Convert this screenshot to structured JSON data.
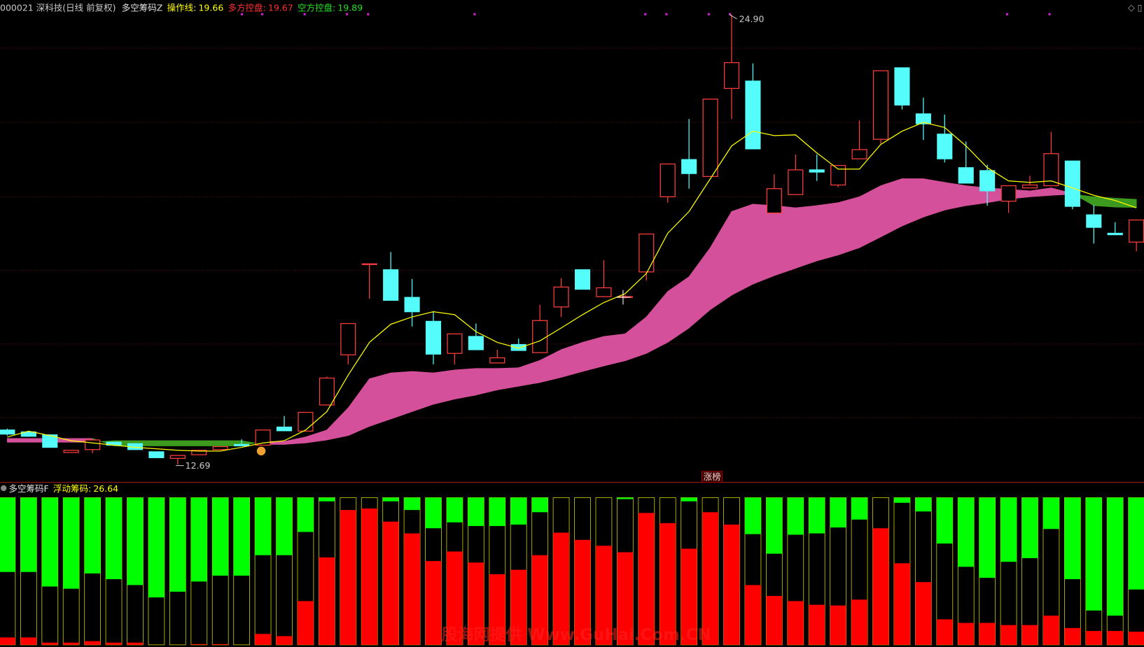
{
  "chart_data": [
    {
      "type": "candlestick",
      "title": "000021 深科技(日线 前复权)",
      "indicator": "多空筹码Z",
      "ylim": [
        12.25,
        25.3
      ],
      "up_color": "#ff3c3c",
      "down_color": "#54fcfc",
      "max_label": "24.90",
      "min_label": "12.69",
      "badge": "涨榜",
      "open": [
        13.63,
        13.58,
        13.5,
        13.02,
        13.1,
        13.3,
        13.26,
        13.04,
        12.86,
        12.96,
        13.1,
        13.24,
        13.22,
        13.71,
        13.6,
        14.31,
        15.67,
        18.14,
        17.98,
        17.23,
        16.58,
        15.71,
        16.17,
        15.45,
        15.95,
        15.73,
        16.97,
        17.98,
        17.25,
        17.23,
        17.92,
        19.96,
        20.97,
        20.51,
        22.9,
        23.1,
        19.52,
        20.02,
        20.69,
        20.28,
        20.99,
        21.52,
        23.46,
        22.21,
        21.66,
        20.75,
        20.67,
        19.84,
        20.2,
        20.26,
        20.93,
        19.47,
        18.97,
        18.73
      ],
      "high": [
        13.67,
        13.58,
        13.5,
        13.08,
        13.38,
        13.3,
        13.26,
        13.04,
        12.94,
        13.08,
        13.18,
        13.38,
        13.63,
        14.01,
        14.11,
        15.08,
        16.52,
        18.14,
        18.46,
        17.73,
        16.86,
        16.24,
        16.52,
        15.81,
        16.11,
        17.03,
        17.75,
        17.98,
        18.24,
        17.3,
        18.95,
        20.85,
        22.07,
        22.61,
        24.9,
        23.58,
        20.57,
        21.11,
        21.11,
        20.81,
        22.03,
        23.38,
        23.46,
        22.65,
        22.19,
        21.46,
        20.83,
        20.26,
        20.53,
        21.72,
        20.93,
        19.74,
        19.27,
        19.33
      ],
      "low": [
        13.48,
        13.46,
        13.16,
        13.02,
        13.0,
        13.22,
        13.1,
        12.88,
        12.69,
        12.96,
        13.1,
        13.2,
        13.22,
        13.61,
        13.6,
        14.31,
        15.41,
        17.19,
        17.15,
        16.44,
        15.41,
        15.41,
        15.81,
        15.45,
        15.79,
        15.73,
        16.7,
        17.45,
        17.25,
        17.2,
        17.69,
        19.8,
        20.18,
        20.51,
        22.07,
        21.26,
        19.52,
        20.02,
        20.39,
        20.22,
        20.99,
        21.4,
        22.33,
        21.5,
        20.89,
        20.33,
        19.72,
        19.52,
        20.2,
        20.26,
        19.62,
        18.69,
        18.93,
        18.48
      ],
      "close": [
        13.52,
        13.46,
        13.16,
        13.08,
        13.36,
        13.22,
        13.1,
        12.88,
        12.94,
        13.08,
        13.18,
        13.2,
        13.63,
        13.61,
        14.11,
        15.04,
        16.52,
        18.14,
        17.15,
        16.84,
        15.69,
        16.24,
        15.81,
        15.59,
        15.79,
        16.6,
        17.51,
        17.45,
        17.49,
        17.25,
        18.95,
        20.85,
        20.59,
        22.61,
        23.6,
        21.26,
        20.18,
        20.69,
        20.63,
        20.81,
        21.24,
        23.38,
        22.45,
        21.94,
        20.99,
        20.33,
        20.12,
        20.26,
        20.28,
        21.13,
        19.7,
        19.13,
        18.93,
        19.33
      ],
      "series": [
        {
          "name": "操作线:",
          "color": "#ffff00",
          "values": [
            13.44,
            13.6,
            13.48,
            13.34,
            13.28,
            13.22,
            13.16,
            13.12,
            13.08,
            13.06,
            13.06,
            13.16,
            13.28,
            13.34,
            13.63,
            14.13,
            15.12,
            16.01,
            16.5,
            16.7,
            16.84,
            16.76,
            16.3,
            16.01,
            15.85,
            16.05,
            16.4,
            16.76,
            17.09,
            17.33,
            17.88,
            18.97,
            19.56,
            20.45,
            21.34,
            21.74,
            21.62,
            21.64,
            21.15,
            20.71,
            20.71,
            21.38,
            21.74,
            21.98,
            21.84,
            21.34,
            20.75,
            20.39,
            20.35,
            20.39,
            20.2,
            20.0,
            19.86,
            19.66
          ]
        },
        {
          "name": "多方控盘:",
          "color": "#d4509a",
          "text_color": "#ff3030",
          "values": [
            13.4,
            13.4,
            13.4,
            13.4,
            13.4,
            13.2,
            13.2,
            13.2,
            13.2,
            13.2,
            13.2,
            13.2,
            13.32,
            13.32,
            13.44,
            13.63,
            14.23,
            15.02,
            15.18,
            15.22,
            15.18,
            15.26,
            15.3,
            15.3,
            15.32,
            15.52,
            15.81,
            16.01,
            16.17,
            16.24,
            16.7,
            17.39,
            17.79,
            18.58,
            19.56,
            19.76,
            19.72,
            19.66,
            19.72,
            19.8,
            19.96,
            20.26,
            20.45,
            20.45,
            20.35,
            20.26,
            20.2,
            20.16,
            20.12,
            20.2,
            20.05,
            19.72,
            19.68,
            19.67
          ]
        },
        {
          "name": "空方控盘:",
          "color": "#3c9a1e",
          "text_color": "#20e020",
          "values": [
            13.3,
            13.3,
            13.3,
            13.3,
            13.3,
            13.34,
            13.34,
            13.34,
            13.34,
            13.34,
            13.34,
            13.34,
            13.24,
            13.24,
            13.28,
            13.36,
            13.48,
            13.73,
            13.93,
            14.13,
            14.33,
            14.47,
            14.58,
            14.72,
            14.82,
            14.92,
            15.06,
            15.22,
            15.37,
            15.51,
            15.71,
            16.01,
            16.4,
            16.9,
            17.29,
            17.59,
            17.82,
            18.02,
            18.22,
            18.38,
            18.58,
            18.87,
            19.17,
            19.41,
            19.6,
            19.72,
            19.8,
            19.9,
            19.96,
            20.0,
            20.03,
            19.96,
            19.92,
            19.89
          ]
        }
      ]
    },
    {
      "type": "bar",
      "title": "多空筹码F",
      "indicator": {
        "name": "浮动筹码:",
        "value": 26.64,
        "color": "#ffff00"
      },
      "watermark": "股海网提供 Www.GuHai.Com.CN",
      "ylim": [
        0,
        100
      ],
      "outline": "#c8c800",
      "series": [
        {
          "color": "#00ff00",
          "position": "top",
          "values": [
            50.5,
            50.5,
            60.4,
            61.9,
            51.5,
            55.4,
            59.4,
            67.8,
            63.9,
            57.0,
            53.0,
            53.0,
            39.1,
            39.1,
            23.3,
            2.5,
            0,
            0,
            2.5,
            8.4,
            20.8,
            16.8,
            19.3,
            19.3,
            18.3,
            9.9,
            0,
            0,
            0,
            1.0,
            0,
            0,
            2.5,
            0,
            0,
            24.8,
            38.1,
            25.2,
            24.3,
            20.3,
            14.9,
            0,
            3.5,
            9.4,
            31.2,
            47.0,
            54.5,
            43.6,
            41.1,
            21.3,
            55.4,
            76.7,
            80.2,
            62.4
          ]
        },
        {
          "color": "#ff0000",
          "position": "bottom",
          "values": [
            5.0,
            5.0,
            1.5,
            1.5,
            2.5,
            1.5,
            1.5,
            0,
            0,
            0.5,
            0.5,
            0,
            7.4,
            5.9,
            29.7,
            59.4,
            91.6,
            92.6,
            83.7,
            75.7,
            56.9,
            63.4,
            55.9,
            48.0,
            51.0,
            60.9,
            76.2,
            71.3,
            67.3,
            62.9,
            89.6,
            82.7,
            65.3,
            90.1,
            81.7,
            40.6,
            33.2,
            29.7,
            27.2,
            26.7,
            30.7,
            79.2,
            55.4,
            42.6,
            17.3,
            14.9,
            14.9,
            13.4,
            13.4,
            19.8,
            11.4,
            9.4,
            9.4,
            8.9
          ]
        }
      ]
    }
  ]
}
